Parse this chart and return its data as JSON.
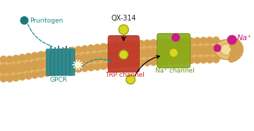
{
  "bg_color": "#ffffff",
  "membrane_fill": "#e8c070",
  "membrane_head_color": "#d4a050",
  "membrane_head_color2": "#e8b860",
  "gpcr_color": "#2a8a90",
  "gpcr_color2": "#1a6870",
  "trp_color": "#c03828",
  "trp_color2": "#a02818",
  "na_color": "#8aaa18",
  "na_color2": "#6a8a10",
  "qx_color": "#d8d820",
  "qx_edge": "#a0a010",
  "pruritogen_color": "#1a7878",
  "na_ion_color": "#cc1a88",
  "label_pruritogen": "Pruritogen",
  "label_gpcr": "GPCR",
  "label_qx": "QX-314",
  "label_trp": "TRP channel",
  "label_na_ch": "Na⁺ channel",
  "label_na_ion": "Na⁺",
  "col_pruritogen": "#1a8888",
  "col_gpcr": "#1a8888",
  "col_qx": "#222222",
  "col_trp": "#cc2222",
  "col_na_ch": "#789010",
  "col_na_ion": "#cc1a88"
}
